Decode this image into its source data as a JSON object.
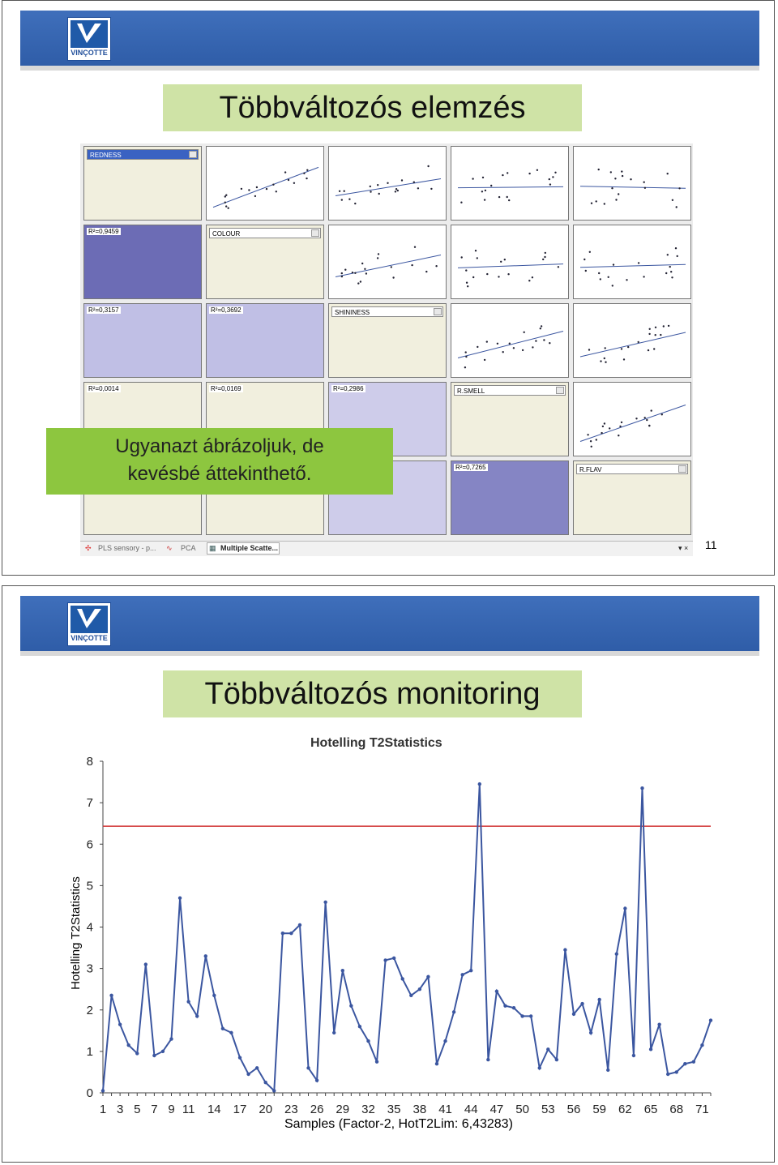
{
  "slide1": {
    "logo_text": "VINÇOTTE",
    "title": "Többváltozós elemzés",
    "combos": [
      "REDNESS",
      "COLOUR",
      "SHININESS",
      "R.SMELL",
      "R.FLAV"
    ],
    "r2": [
      "R²=0,9459",
      "R²=0,3157",
      "R²=0,3692",
      "R²=0,0014",
      "R²=0,0169",
      "R²=0,2986",
      "R²=0,7265"
    ],
    "callout_line1": "Ugyanazt ábrázoljuk, de",
    "callout_line2": "kevésbé áttekinthető.",
    "taskbar": [
      "PLS sensory - p...",
      "PCA",
      "Multiple Scatte..."
    ],
    "taskbar_controls": "▾ ×",
    "page_number": "11"
  },
  "slide2": {
    "logo_text": "VINÇOTTE",
    "title": "Többváltozós monitoring"
  },
  "chart_data": {
    "type": "line",
    "title": "Hotelling T2Statistics",
    "ylabel": "Hotelling T2Statistics",
    "xlabel": "Samples (Factor-2, HotT2Lim: 6,43283)",
    "ylim": [
      0,
      8
    ],
    "yticks": [
      "0",
      "1",
      "2",
      "3",
      "4",
      "5",
      "6",
      "7",
      "8"
    ],
    "xticks": [
      "1",
      "3",
      "5",
      "7",
      "9",
      "11",
      "14",
      "17",
      "20",
      "23",
      "26",
      "29",
      "32",
      "35",
      "38",
      "41",
      "44",
      "47",
      "50",
      "53",
      "56",
      "59",
      "62",
      "65",
      "68",
      "71"
    ],
    "limit": 6.43283,
    "limit_color": "#d03030",
    "line_color": "#3b56a0",
    "values": [
      0.05,
      2.35,
      1.65,
      1.15,
      0.95,
      3.1,
      0.9,
      1.0,
      1.3,
      4.7,
      2.2,
      1.85,
      3.3,
      2.35,
      1.55,
      1.45,
      0.85,
      0.45,
      0.6,
      0.25,
      0.05,
      3.85,
      3.85,
      4.05,
      0.6,
      0.3,
      4.6,
      1.45,
      2.95,
      2.1,
      1.6,
      1.25,
      0.75,
      3.2,
      3.25,
      2.75,
      2.35,
      2.5,
      2.8,
      0.7,
      1.25,
      1.95,
      2.85,
      2.95,
      7.45,
      0.8,
      2.45,
      2.1,
      2.05,
      1.85,
      1.85,
      0.6,
      1.05,
      0.8,
      3.45,
      1.9,
      2.15,
      1.45,
      2.25,
      0.55,
      3.35,
      4.45,
      0.9,
      7.35,
      1.05,
      1.65,
      0.45,
      0.5,
      0.7,
      0.75,
      1.15,
      1.75
    ]
  }
}
